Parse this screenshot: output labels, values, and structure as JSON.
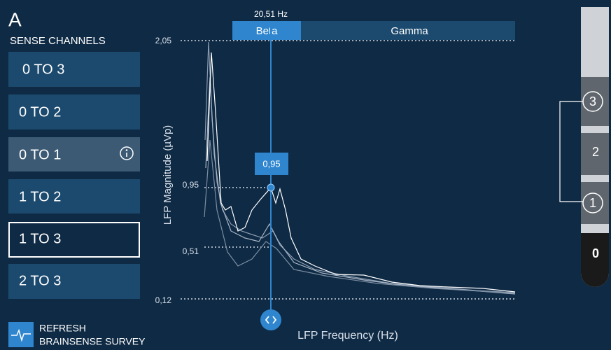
{
  "header": {
    "panel_letter": "A",
    "section_title": "SENSE CHANNELS"
  },
  "channels": [
    "0 TO 3",
    "0 TO 2",
    "0 TO 1",
    "1 TO 2",
    "1 TO 3",
    "2 TO 3"
  ],
  "plot": {
    "cursor_frequency": "20,51 Hz",
    "bands": [
      "Beta",
      "Gamma"
    ],
    "y_axis_title": "LFP Magnitude (µVp)",
    "y_labels": [
      "2,05",
      "0,95",
      "0,51",
      "0,12"
    ],
    "marker_value": "0,95",
    "x_axis_title": "LFP Frequency (Hz)"
  },
  "electrode": {
    "contacts": [
      "3",
      "2",
      "1",
      "0"
    ]
  },
  "footer": {
    "lines": [
      "REFRESH",
      "BRAINSENSE SURVEY"
    ]
  }
}
